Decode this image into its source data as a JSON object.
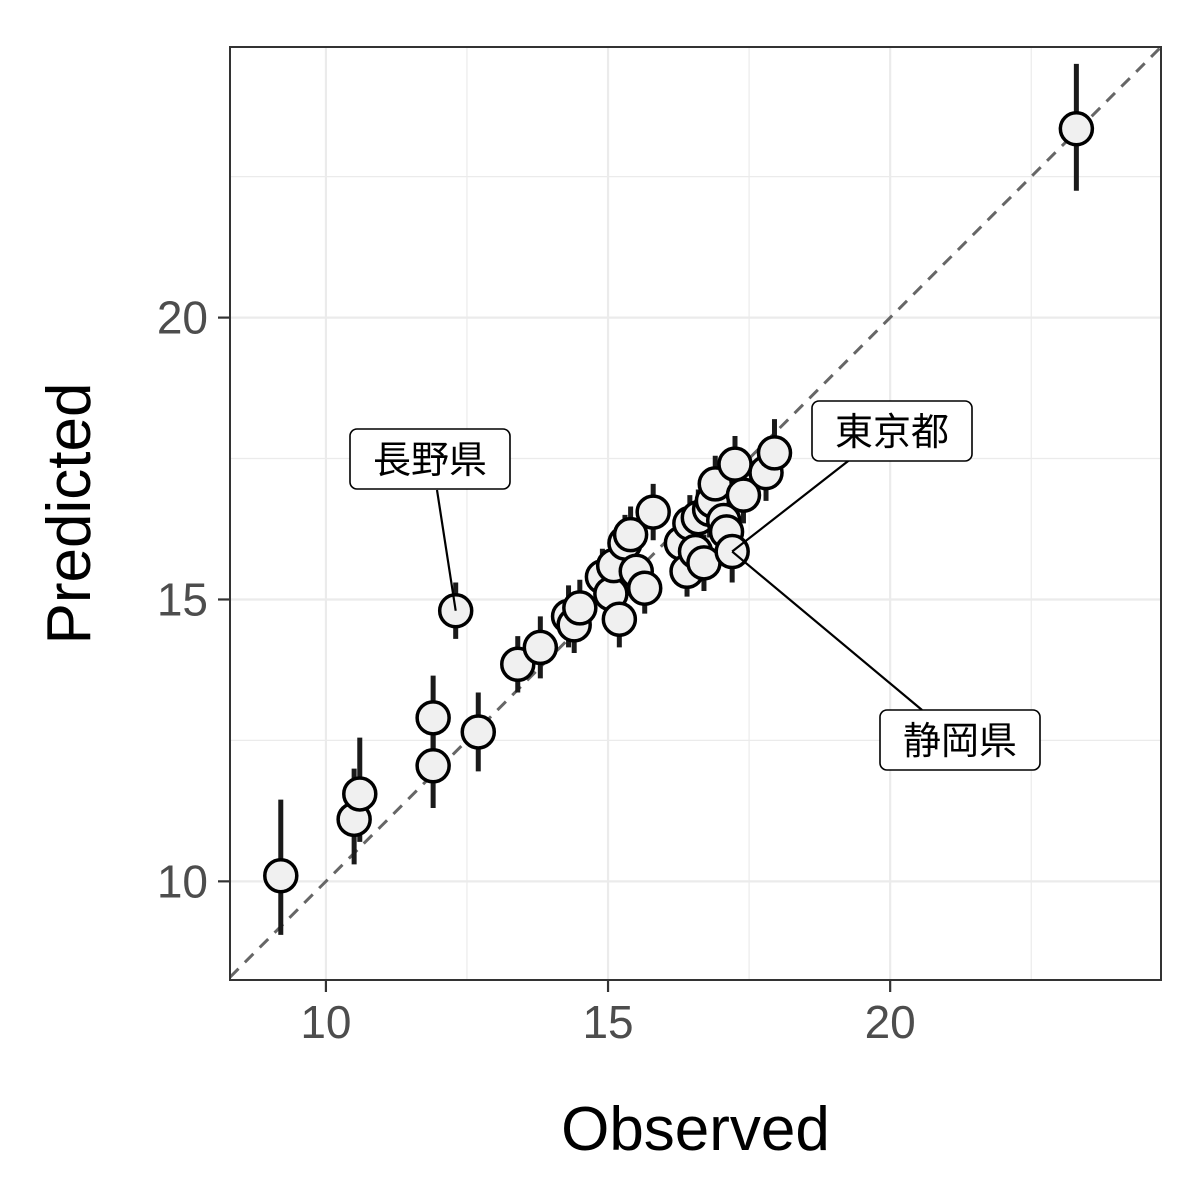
{
  "chart_data": {
    "type": "scatter",
    "title": "",
    "xlabel": "Observed",
    "ylabel": "Predicted",
    "xlim": [
      8.3,
      24.8
    ],
    "ylim": [
      8.25,
      24.8
    ],
    "x_ticks": [
      10,
      15,
      20
    ],
    "y_ticks": [
      10,
      15,
      20
    ],
    "grid": true,
    "reference_line": "y = x (dashed)",
    "points": [
      {
        "x": 9.2,
        "y": 10.1,
        "lo": 9.05,
        "hi": 11.45
      },
      {
        "x": 10.5,
        "y": 11.1,
        "lo": 10.3,
        "hi": 12.0
      },
      {
        "x": 10.6,
        "y": 11.55,
        "lo": 10.7,
        "hi": 12.55
      },
      {
        "x": 11.9,
        "y": 12.9,
        "lo": 12.15,
        "hi": 13.65
      },
      {
        "x": 11.9,
        "y": 12.05,
        "lo": 11.3,
        "hi": 12.75
      },
      {
        "x": 12.3,
        "y": 14.8,
        "lo": 14.3,
        "hi": 15.3
      },
      {
        "x": 12.7,
        "y": 12.65,
        "lo": 11.95,
        "hi": 13.35
      },
      {
        "x": 13.4,
        "y": 13.85,
        "lo": 13.35,
        "hi": 14.35
      },
      {
        "x": 13.8,
        "y": 14.15,
        "lo": 13.6,
        "hi": 14.7
      },
      {
        "x": 14.3,
        "y": 14.7,
        "lo": 14.15,
        "hi": 15.25
      },
      {
        "x": 14.4,
        "y": 14.55,
        "lo": 14.05,
        "hi": 15.1
      },
      {
        "x": 14.5,
        "y": 14.85,
        "lo": 14.35,
        "hi": 15.35
      },
      {
        "x": 14.9,
        "y": 15.4,
        "lo": 14.95,
        "hi": 15.9
      },
      {
        "x": 15.05,
        "y": 15.1,
        "lo": 14.65,
        "hi": 15.6
      },
      {
        "x": 15.1,
        "y": 15.6,
        "lo": 15.15,
        "hi": 16.05
      },
      {
        "x": 15.2,
        "y": 14.65,
        "lo": 14.15,
        "hi": 15.15
      },
      {
        "x": 15.3,
        "y": 16.0,
        "lo": 15.5,
        "hi": 16.5
      },
      {
        "x": 15.4,
        "y": 16.15,
        "lo": 15.65,
        "hi": 16.65
      },
      {
        "x": 15.5,
        "y": 15.5,
        "lo": 15.05,
        "hi": 15.95
      },
      {
        "x": 15.65,
        "y": 15.2,
        "lo": 14.75,
        "hi": 15.7
      },
      {
        "x": 15.8,
        "y": 16.55,
        "lo": 16.05,
        "hi": 17.05
      },
      {
        "x": 16.3,
        "y": 16.0,
        "lo": 15.5,
        "hi": 16.5
      },
      {
        "x": 16.4,
        "y": 15.5,
        "lo": 15.05,
        "hi": 15.95
      },
      {
        "x": 16.45,
        "y": 16.35,
        "lo": 15.85,
        "hi": 16.85
      },
      {
        "x": 16.55,
        "y": 15.85,
        "lo": 15.4,
        "hi": 16.35
      },
      {
        "x": 16.6,
        "y": 16.45,
        "lo": 15.95,
        "hi": 16.95
      },
      {
        "x": 16.7,
        "y": 15.65,
        "lo": 15.15,
        "hi": 16.15
      },
      {
        "x": 16.8,
        "y": 16.6,
        "lo": 16.1,
        "hi": 17.1
      },
      {
        "x": 16.85,
        "y": 16.75,
        "lo": 16.25,
        "hi": 17.25
      },
      {
        "x": 16.9,
        "y": 17.05,
        "lo": 16.55,
        "hi": 17.55
      },
      {
        "x": 17.05,
        "y": 16.4,
        "lo": 15.9,
        "hi": 16.9
      },
      {
        "x": 17.1,
        "y": 16.2,
        "lo": 15.7,
        "hi": 16.7
      },
      {
        "x": 17.2,
        "y": 15.85,
        "lo": 15.3,
        "hi": 16.4
      },
      {
        "x": 17.25,
        "y": 17.4,
        "lo": 16.9,
        "hi": 17.9
      },
      {
        "x": 17.4,
        "y": 16.85,
        "lo": 16.35,
        "hi": 17.35
      },
      {
        "x": 17.8,
        "y": 17.25,
        "lo": 16.75,
        "hi": 17.75
      },
      {
        "x": 17.95,
        "y": 17.6,
        "lo": 17.0,
        "hi": 18.2
      },
      {
        "x": 23.3,
        "y": 23.35,
        "lo": 22.25,
        "hi": 24.5
      }
    ],
    "annotations": [
      {
        "label": "長野県",
        "x": 12.3,
        "y": 14.8
      },
      {
        "label": "東京都",
        "x": 17.2,
        "y": 15.85
      },
      {
        "label": "静岡県",
        "x": 17.2,
        "y": 15.85
      }
    ],
    "colors": {
      "point_fill": "#f0f0f0",
      "point_stroke": "#000000",
      "errorbar": "#1a1a1a",
      "grid": "#ebebeb",
      "panel_border": "#333333",
      "reference_line": "#666666"
    }
  }
}
